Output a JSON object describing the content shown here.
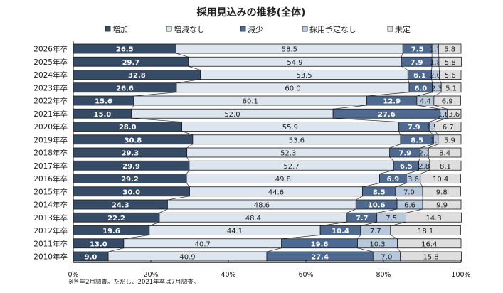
{
  "chart_data": {
    "type": "bar",
    "orientation": "horizontal-stacked-100",
    "title": "採用見込みの推移(全体)",
    "xlabel": "",
    "ylabel": "",
    "xlim": [
      0,
      100
    ],
    "x_ticks": [
      "0%",
      "20%",
      "40%",
      "60%",
      "80%",
      "100%"
    ],
    "legend_position": "top",
    "categories": [
      "2026年卒",
      "2025年卒",
      "2024年卒",
      "2023年卒",
      "2022年卒",
      "2021年卒",
      "2020年卒",
      "2019年卒",
      "2018年卒",
      "2017年卒",
      "2016年卒",
      "2015年卒",
      "2014年卒",
      "2013年卒",
      "2012年卒",
      "2011年卒",
      "2010年卒"
    ],
    "series": [
      {
        "name": "増加",
        "color": "#364b66",
        "label_style": "light",
        "values": [
          26.5,
          29.7,
          32.8,
          26.6,
          15.6,
          15.0,
          28.0,
          30.8,
          29.3,
          29.9,
          29.2,
          30.0,
          24.3,
          22.2,
          19.6,
          13.0,
          9.0
        ]
      },
      {
        "name": "増減なし",
        "color": "#dde5ef",
        "label_style": "dark",
        "values": [
          58.5,
          54.9,
          53.5,
          60.0,
          60.1,
          52.0,
          55.9,
          53.6,
          52.3,
          52.7,
          49.8,
          44.6,
          48.6,
          48.4,
          44.1,
          40.7,
          40.9
        ]
      },
      {
        "name": "減少",
        "color": "#4f6a91",
        "label_style": "light",
        "values": [
          7.5,
          7.9,
          6.1,
          6.0,
          12.9,
          27.6,
          7.9,
          8.5,
          7.9,
          6.5,
          6.9,
          8.5,
          10.6,
          7.7,
          10.4,
          19.6,
          27.4
        ]
      },
      {
        "name": "採用予定なし",
        "color": "#b8c8dc",
        "label_style": "dark",
        "values": [
          1.7,
          1.8,
          2.0,
          2.3,
          4.4,
          1.8,
          1.5,
          1.2,
          2.1,
          2.8,
          3.6,
          7.0,
          6.6,
          7.5,
          7.7,
          10.3,
          7.0
        ]
      },
      {
        "name": "未定",
        "color": "#dedede",
        "label_style": "dark",
        "values": [
          5.8,
          5.8,
          5.6,
          5.1,
          6.9,
          3.6,
          6.7,
          5.9,
          8.4,
          8.1,
          10.4,
          9.8,
          9.9,
          14.3,
          18.1,
          16.4,
          15.8
        ]
      }
    ],
    "footnote": "※各年2月調査。ただし、2021年卒は7月調査。"
  }
}
